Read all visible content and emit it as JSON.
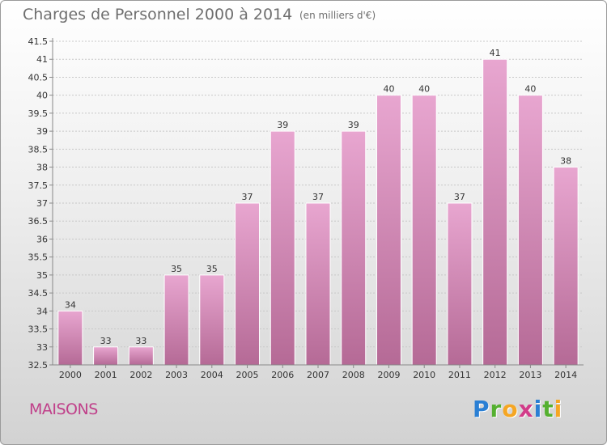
{
  "header": {
    "title": "Charges de Personnel 2000 à 2014",
    "subtitle": "(en milliers d'€)"
  },
  "footer": {
    "commune": "MAISONS",
    "logo": {
      "p": "P",
      "r": "r",
      "o": "o",
      "x": "x",
      "i": "i",
      "t": "t",
      "i2": "i"
    }
  },
  "colors": {
    "bar_top": "#e8a6d0",
    "bar_bottom": "#b56a96",
    "bar_edge": "#ffffff",
    "axis_text": "#333333",
    "grid": "#c8c8c8"
  },
  "chart_data": {
    "type": "bar",
    "title": "Charges de Personnel 2000 à 2014",
    "subtitle": "(en milliers d'€)",
    "categories": [
      "2000",
      "2001",
      "2002",
      "2003",
      "2004",
      "2005",
      "2006",
      "2007",
      "2008",
      "2009",
      "2010",
      "2011",
      "2012",
      "2013",
      "2014"
    ],
    "values": [
      34,
      33,
      33,
      35,
      35,
      37,
      39,
      37,
      39,
      40,
      40,
      37,
      41,
      40,
      38
    ],
    "data_labels": [
      "34",
      "33",
      "33",
      "35",
      "35",
      "37",
      "39",
      "37",
      "39",
      "40",
      "40",
      "37",
      "41",
      "40",
      "38"
    ],
    "ylim": [
      32.5,
      41.5
    ],
    "yticks": [
      "32.5",
      "33",
      "33.5",
      "34",
      "34.5",
      "35",
      "35.5",
      "36",
      "36.5",
      "37",
      "37.5",
      "38",
      "38.5",
      "39",
      "39.5",
      "40",
      "40.5",
      "41",
      "41.5"
    ],
    "grid": true,
    "xlabel": "",
    "ylabel": ""
  }
}
